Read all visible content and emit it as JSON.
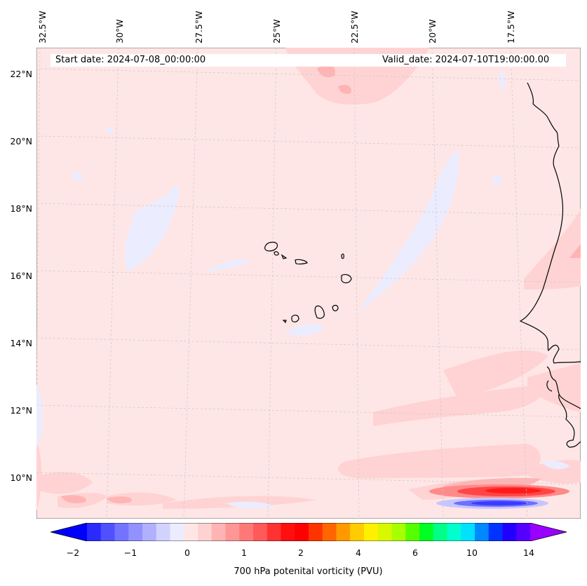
{
  "map": {
    "top_longitude_labels": [
      "32.5°W",
      "30°W",
      "27.5°W",
      "25°W",
      "22.5°W",
      "20°W",
      "17.5°W"
    ],
    "left_latitude_labels": [
      "22°N",
      "20°N",
      "18°N",
      "16°N",
      "14°N",
      "12°N",
      "10°N"
    ],
    "header": {
      "start_date": "Start date: 2024-07-08_00:00:00",
      "valid_date": "Valid_date: 2024-07-10T19:00:00.00"
    },
    "colors": {
      "background_field": "#ffe6e6",
      "light_pink": "#ffd3d3",
      "medium_pink": "#ffb4b4",
      "red": "#ff2020",
      "light_blue": "#ececff",
      "blue": "#3a3aff",
      "coastline": "#000000",
      "grid": "#c8c8c8"
    }
  },
  "colorbar": {
    "label": "700 hPa potenital vorticity (PVU)",
    "ticks": [
      "−2",
      "−1",
      "0",
      "1",
      "2",
      "4",
      "6",
      "10",
      "14"
    ],
    "colors": [
      "#0000ff",
      "#2a2aff",
      "#5050ff",
      "#7373ff",
      "#9191ff",
      "#b0b0ff",
      "#d2d2ff",
      "#ececff",
      "#ffe6e6",
      "#ffd2d2",
      "#ffb4b4",
      "#ff9696",
      "#ff7878",
      "#ff5a5a",
      "#ff3232",
      "#ff0f0f",
      "#ff0000",
      "#ff3300",
      "#ff6600",
      "#ff9900",
      "#ffcc00",
      "#fff000",
      "#d8f800",
      "#a8ff00",
      "#55ff00",
      "#00ff22",
      "#00ff88",
      "#00ffcc",
      "#00e0ff",
      "#0088ff",
      "#0033ff",
      "#2200ff",
      "#5500ff",
      "#9900ff"
    ]
  }
}
